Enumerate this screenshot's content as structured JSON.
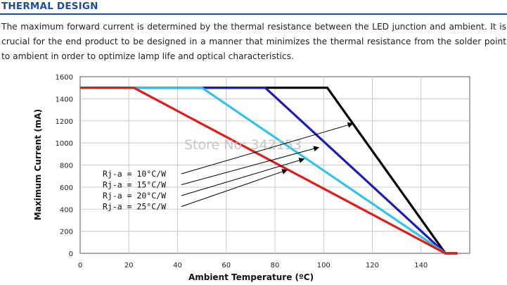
{
  "section": {
    "title": "THERMAL DESIGN",
    "paragraph": "The maximum forward current is determined by the thermal resistance between the LED junction and ambient. It is crucial for the end product to be designed in a manner that minimizes the thermal resistance from the solder point to ambient in order to optimize lamp life and optical characteristics."
  },
  "watermark": "Store No: 342153",
  "colors": {
    "title": "#1f4e97",
    "series": [
      "#000000",
      "#1c1cb0",
      "#33c2e8",
      "#e01b1b"
    ]
  },
  "chart_data": {
    "type": "line",
    "title": "",
    "xlabel": "Ambient Temperature (ºC)",
    "ylabel": "Maximum Current (mA)",
    "xlim": [
      0,
      160
    ],
    "ylim": [
      0,
      1600
    ],
    "xticks": [
      0,
      20,
      40,
      60,
      80,
      100,
      120,
      140
    ],
    "yticks": [
      0,
      200,
      400,
      600,
      800,
      1000,
      1200,
      1400,
      1600
    ],
    "grid": true,
    "series": [
      {
        "name": "Rj-a = 10°C/W",
        "x": [
          0,
          101.5,
          150,
          155
        ],
        "y": [
          1500,
          1500,
          0,
          0
        ]
      },
      {
        "name": "Rj-a = 15°C/W",
        "x": [
          0,
          76,
          150,
          155
        ],
        "y": [
          1500,
          1500,
          0,
          0
        ]
      },
      {
        "name": "Rj-a = 20°C/W",
        "x": [
          0,
          50,
          150,
          155
        ],
        "y": [
          1500,
          1500,
          0,
          0
        ]
      },
      {
        "name": "Rj-a = 25°C/W",
        "x": [
          0,
          22,
          150,
          155
        ],
        "y": [
          1500,
          1500,
          0,
          0
        ]
      }
    ],
    "annotations": [
      {
        "label": "Rj-a = 10°C/W",
        "arrow_to": [
          112,
          1175
        ]
      },
      {
        "label": "Rj-a = 15°C/W",
        "arrow_to": [
          98,
          960
        ]
      },
      {
        "label": "Rj-a = 20°C/W",
        "arrow_to": [
          92,
          855
        ]
      },
      {
        "label": "Rj-a = 25°C/W",
        "arrow_to": [
          85,
          755
        ]
      }
    ]
  }
}
